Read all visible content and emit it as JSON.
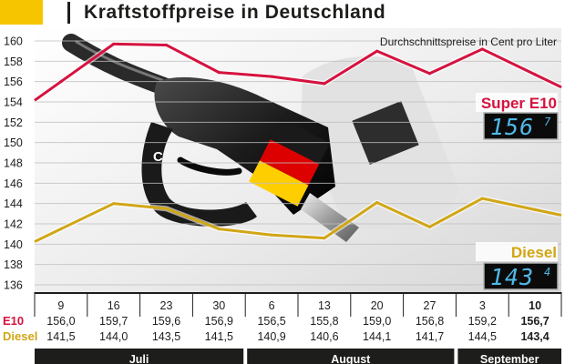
{
  "title": "Kraftstoffpreise in Deutschland",
  "subtitle": "Durchschnittspreise in Cent pro Liter",
  "colors": {
    "e10": "#d5123f",
    "diesel": "#d1a615",
    "accent_square": "#f7c400",
    "month_bar": "#1d1d1b",
    "grid": "#bfbfbf"
  },
  "chart_data": {
    "type": "line",
    "title": "Kraftstoffpreise in Deutschland",
    "subtitle": "Durchschnittspreise in Cent pro Liter",
    "x": [
      "9",
      "16",
      "23",
      "30",
      "6",
      "13",
      "20",
      "27",
      "3",
      "10"
    ],
    "months": [
      {
        "label": "Juli",
        "from": 0,
        "to": 3
      },
      {
        "label": "August",
        "from": 4,
        "to": 7
      },
      {
        "label": "September",
        "from": 8,
        "to": 9
      }
    ],
    "ylim": [
      136,
      160
    ],
    "yticks": [
      136,
      138,
      140,
      142,
      144,
      146,
      148,
      150,
      152,
      154,
      156,
      158,
      160
    ],
    "grid": true,
    "series": [
      {
        "name": "Super E10",
        "short_label": "E10",
        "values": [
          156.0,
          159.7,
          159.6,
          156.9,
          156.5,
          155.8,
          159.0,
          156.8,
          159.2,
          156.7
        ],
        "value_labels": [
          "156,0",
          "159,7",
          "159,6",
          "156,9",
          "156,5",
          "155,8",
          "159,0",
          "156,8",
          "159,2",
          "156,7"
        ],
        "color": "#d5123f",
        "display_main": "156",
        "display_fraction": "7"
      },
      {
        "name": "Diesel",
        "short_label": "Diesel",
        "values": [
          141.5,
          144.0,
          143.5,
          141.5,
          140.9,
          140.6,
          144.1,
          141.7,
          144.5,
          143.4
        ],
        "value_labels": [
          "141,5",
          "144,0",
          "143,5",
          "141,5",
          "140,9",
          "140,6",
          "144,1",
          "141,7",
          "144,5",
          "143,4"
        ],
        "color": "#d1a615",
        "display_main": "143",
        "display_fraction": "4"
      }
    ]
  }
}
